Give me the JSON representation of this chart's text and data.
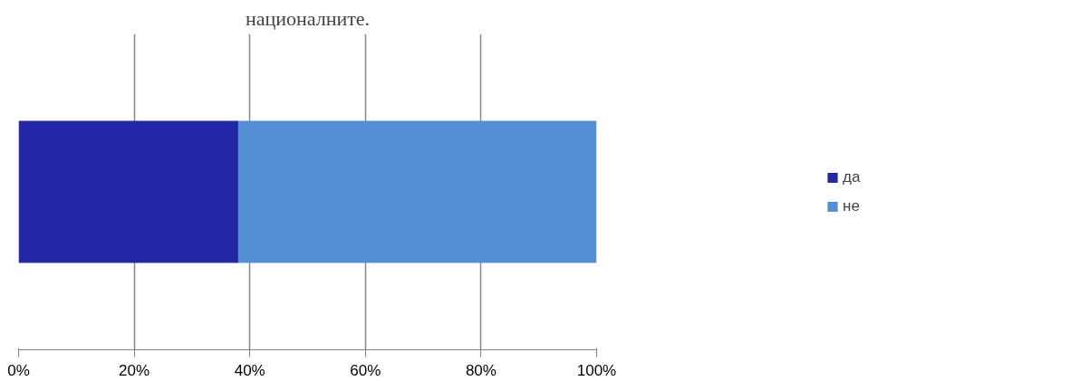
{
  "chart_data": {
    "type": "bar",
    "orientation": "horizontal",
    "stacked": true,
    "title": "националните.",
    "categories": [
      null
    ],
    "series": [
      {
        "name": "да",
        "color": "#2427a6",
        "values": [
          38
        ]
      },
      {
        "name": "не",
        "color": "#548fd5",
        "values": [
          62
        ]
      }
    ],
    "xlim": [
      0,
      100
    ],
    "xticks": [
      {
        "value": 0,
        "label": "0%"
      },
      {
        "value": 20,
        "label": "20%"
      },
      {
        "value": 40,
        "label": "40%"
      },
      {
        "value": 60,
        "label": "60%"
      },
      {
        "value": 80,
        "label": "80%"
      },
      {
        "value": 100,
        "label": "100%"
      }
    ],
    "grid": "x",
    "legend": "right"
  }
}
